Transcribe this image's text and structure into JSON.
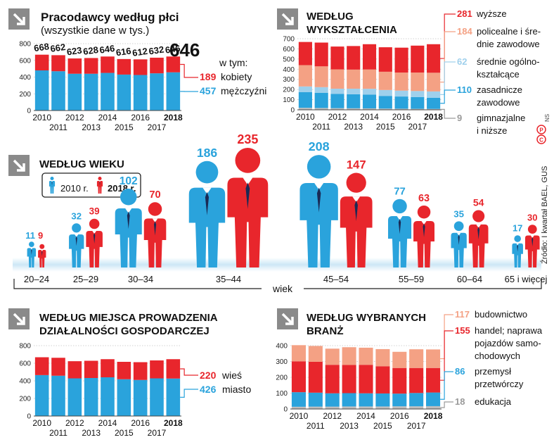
{
  "colors": {
    "men": "#2aa3dc",
    "women": "#e8262c",
    "salmon": "#f4a184",
    "light_blue": "#9fd0ec",
    "gray": "#bdbdbd",
    "accent_gray": "#9a9a9a",
    "grid": "#c4c4c4"
  },
  "icons": {
    "section_arrow": "arrow-down-right-icon",
    "person": "person-icon",
    "copyright": "copyright-p-icon"
  },
  "source": "Źródło: I kwartał BAEL, GUS",
  "credit": "NS",
  "gender": {
    "title": "Pracodawcy według płci",
    "subtitle": "(wszystkie dane w tys.)",
    "of_which": "w tym:",
    "big_total": "646",
    "years_upper": [
      "2010",
      "2012",
      "2014",
      "2016",
      "2018"
    ],
    "years_lower": [
      "2011",
      "2013",
      "2015",
      "2017"
    ],
    "legend": [
      {
        "value": "189",
        "label": "kobiety"
      },
      {
        "value": "457",
        "label": "mężczyźni"
      }
    ]
  },
  "education": {
    "title_line1": "Według",
    "title_line2": "wykształcenia",
    "years_upper": [
      "2010",
      "2012",
      "2014",
      "2016",
      "2018"
    ],
    "years_lower": [
      "2011",
      "2013",
      "2015",
      "2017"
    ],
    "legend": [
      {
        "value": "281",
        "line1": "wyższe",
        "line2": ""
      },
      {
        "value": "184",
        "line1": "policealne i śre-",
        "line2": "dnie zawodowe"
      },
      {
        "value": "62",
        "line1": "średnie ogólno-",
        "line2": "kształcące"
      },
      {
        "value": "110",
        "line1": "zasadnicze",
        "line2": "zawodowe"
      },
      {
        "value": "9",
        "line1": "gimnazjalne",
        "line2": "i niższe"
      }
    ]
  },
  "age": {
    "title": "Według wieku",
    "legend_2010": "2010 r.",
    "legend_2018": "2018 r.",
    "axis_label": "wiek",
    "groups": [
      {
        "label": "20–24",
        "v2010": "11",
        "v2018": "9"
      },
      {
        "label": "25–29",
        "v2010": "32",
        "v2018": "39"
      },
      {
        "label": "30–34",
        "v2010": "102",
        "v2018": "70"
      },
      {
        "label": "35–44",
        "v2010": "186",
        "v2018": "235"
      },
      {
        "label": "45–54",
        "v2010": "208",
        "v2018": "147"
      },
      {
        "label": "55–59",
        "v2010": "77",
        "v2018": "63"
      },
      {
        "label": "60–64",
        "v2010": "35",
        "v2018": "54"
      },
      {
        "label": "65 i więcej",
        "v2010": "17",
        "v2018": "30"
      }
    ]
  },
  "location": {
    "title_line1": "Według miejsca prowadzenia",
    "title_line2": "działalności gospodarczej",
    "years_upper": [
      "2010",
      "2012",
      "2014",
      "2016",
      "2018"
    ],
    "years_lower": [
      "2011",
      "2013",
      "2015",
      "2017"
    ],
    "legend": [
      {
        "value": "220",
        "label": "wieś"
      },
      {
        "value": "426",
        "label": "miasto"
      }
    ]
  },
  "industry": {
    "title_line1": "Według wybranych",
    "title_line2": "branż",
    "years_upper": [
      "2010",
      "2012",
      "2014",
      "2016",
      "2018"
    ],
    "years_lower": [
      "2011",
      "2013",
      "2015",
      "2017"
    ],
    "legend": [
      {
        "value": "117",
        "line1": "budownictwo",
        "line2": ""
      },
      {
        "value": "155",
        "line1": "handel; naprawa",
        "line2": "pojazdów samo-",
        "line3": "chodowych"
      },
      {
        "value": "86",
        "line1": "przemysł",
        "line2": "przetwórczy"
      },
      {
        "value": "18",
        "line1": "edukacja",
        "line2": ""
      }
    ]
  },
  "chart_data": [
    {
      "type": "bar",
      "stacked": true,
      "title": "Pracodawcy według płci",
      "categories": [
        "2010",
        "2011",
        "2012",
        "2013",
        "2014",
        "2015",
        "2016",
        "2017",
        "2018"
      ],
      "totals": [
        668,
        662,
        623,
        628,
        646,
        616,
        612,
        632,
        646
      ],
      "series": [
        {
          "name": "mężczyźni",
          "color": "#2aa3dc",
          "values": [
            480,
            470,
            440,
            440,
            450,
            430,
            425,
            445,
            457
          ]
        },
        {
          "name": "kobiety",
          "color": "#e8262c",
          "values": [
            188,
            192,
            183,
            188,
            196,
            186,
            187,
            187,
            189
          ]
        }
      ],
      "yticks": [
        0,
        200,
        400,
        600,
        800
      ],
      "ylim": [
        0,
        800
      ],
      "grid": true
    },
    {
      "type": "bar",
      "stacked": true,
      "title": "Według wykształcenia",
      "categories": [
        "2010",
        "2011",
        "2012",
        "2013",
        "2014",
        "2015",
        "2016",
        "2017",
        "2018"
      ],
      "series": [
        {
          "name": "gimnazjalne i niższe",
          "color": "#bdbdbd",
          "values": [
            20,
            18,
            16,
            15,
            14,
            12,
            11,
            10,
            9
          ]
        },
        {
          "name": "zasadnicze zawodowe",
          "color": "#2aa3dc",
          "values": [
            155,
            150,
            140,
            138,
            135,
            125,
            120,
            115,
            110
          ]
        },
        {
          "name": "średnie ogólnokształcące",
          "color": "#9fd0ec",
          "values": [
            55,
            55,
            52,
            55,
            58,
            58,
            58,
            60,
            62
          ]
        },
        {
          "name": "policealne i średnie zawodowe",
          "color": "#f4a184",
          "values": [
            210,
            205,
            190,
            188,
            190,
            180,
            178,
            182,
            184
          ]
        },
        {
          "name": "wyższe",
          "color": "#e8262c",
          "values": [
            228,
            234,
            225,
            232,
            249,
            241,
            245,
            265,
            281
          ]
        }
      ],
      "yticks": [
        0,
        100,
        200,
        300,
        400,
        500,
        600,
        700
      ],
      "ylim": [
        0,
        700
      ],
      "grid": true
    },
    {
      "type": "bar",
      "title": "Według wieku",
      "categories": [
        "20–24",
        "25–29",
        "30–34",
        "35–44",
        "45–54",
        "55–59",
        "60–64",
        "65 i więcej"
      ],
      "series": [
        {
          "name": "2010 r.",
          "color": "#2aa3dc",
          "values": [
            11,
            32,
            102,
            186,
            208,
            77,
            35,
            17
          ]
        },
        {
          "name": "2018 r.",
          "color": "#e8262c",
          "values": [
            9,
            39,
            70,
            235,
            147,
            63,
            54,
            30
          ]
        }
      ],
      "xlabel": "wiek"
    },
    {
      "type": "bar",
      "stacked": true,
      "title": "Według miejsca prowadzenia działalności gospodarczej",
      "categories": [
        "2010",
        "2011",
        "2012",
        "2013",
        "2014",
        "2015",
        "2016",
        "2017",
        "2018"
      ],
      "series": [
        {
          "name": "miasto",
          "color": "#2aa3dc",
          "values": [
            465,
            458,
            428,
            432,
            440,
            418,
            410,
            428,
            426
          ]
        },
        {
          "name": "wieś",
          "color": "#e8262c",
          "values": [
            203,
            204,
            195,
            196,
            206,
            198,
            202,
            204,
            220
          ]
        }
      ],
      "yticks": [
        0,
        200,
        400,
        600,
        800
      ],
      "ylim": [
        0,
        800
      ],
      "grid": true
    },
    {
      "type": "bar",
      "stacked": true,
      "title": "Według wybranych branż",
      "categories": [
        "2010",
        "2011",
        "2012",
        "2013",
        "2014",
        "2015",
        "2016",
        "2017",
        "2018"
      ],
      "series": [
        {
          "name": "edukacja",
          "color": "#bdbdbd",
          "values": [
            14,
            15,
            15,
            16,
            16,
            16,
            17,
            17,
            18
          ]
        },
        {
          "name": "przemysł przetwórczy",
          "color": "#2aa3dc",
          "values": [
            92,
            88,
            84,
            84,
            83,
            82,
            80,
            84,
            86
          ]
        },
        {
          "name": "handel; naprawa pojazdów samochodowych",
          "color": "#e8262c",
          "values": [
            195,
            195,
            180,
            178,
            180,
            172,
            162,
            158,
            155
          ]
        },
        {
          "name": "budownictwo",
          "color": "#f4a184",
          "values": [
            102,
            100,
            102,
            112,
            108,
            108,
            102,
            118,
            117
          ]
        }
      ],
      "yticks": [
        0,
        100,
        200,
        300,
        400
      ],
      "ylim": [
        0,
        400
      ],
      "grid": true
    }
  ]
}
